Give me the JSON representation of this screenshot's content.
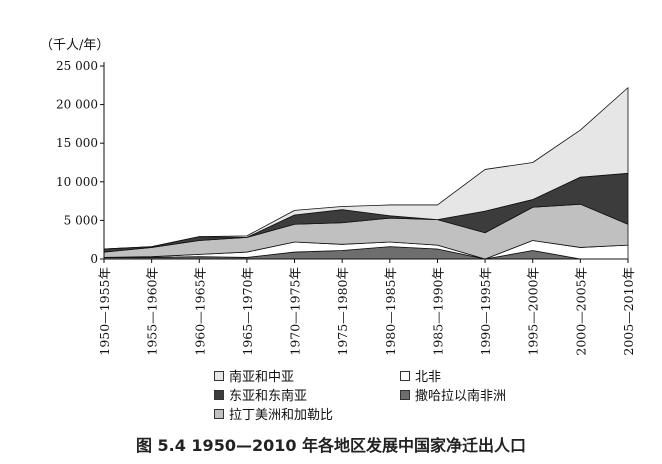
{
  "chart_data": {
    "type": "area",
    "stacked": true,
    "caption": "图 5.4   1950—2010 年各地区发展中国家净迁出人口",
    "ylabel": "（千人/年）",
    "ylim": [
      0,
      25000
    ],
    "yticks": [
      0,
      5000,
      10000,
      15000,
      20000,
      25000
    ],
    "ytick_labels": [
      "0",
      "5 000",
      "10 000",
      "15 000",
      "20 000",
      "25 000"
    ],
    "categories": [
      "1950—1955年",
      "1955—1960年",
      "1960—1965年",
      "1965—1970年",
      "1970—1975年",
      "1975—1980年",
      "1980—1985年",
      "1985—1990年",
      "1990—1995年",
      "1995—2000年",
      "2000—2005年",
      "2005—2010年"
    ],
    "legend_placement": "bottom",
    "grid": false,
    "series": [
      {
        "name": "撒哈拉以南非洲",
        "color": "#6e6e6e",
        "values": [
          200,
          200,
          300,
          200,
          900,
          1100,
          1600,
          1300,
          0,
          1100,
          0,
          0
        ]
      },
      {
        "name": "北非",
        "color": "#ffffff",
        "values": [
          0,
          100,
          300,
          700,
          1300,
          800,
          600,
          500,
          0,
          1300,
          1500,
          1800
        ]
      },
      {
        "name": "拉丁美洲和加勒比",
        "color": "#c0c0c0",
        "values": [
          700,
          1200,
          1800,
          1900,
          2300,
          2800,
          3100,
          3300,
          3400,
          4300,
          5600,
          2700
        ]
      },
      {
        "name": "东亚和东南亚",
        "color": "#3c3c3c",
        "values": [
          400,
          100,
          500,
          0,
          1200,
          1700,
          300,
          0,
          2800,
          1000,
          3500,
          6600
        ]
      },
      {
        "name": "南亚和中亚",
        "color": "#e6e6e6",
        "values": [
          0,
          0,
          0,
          200,
          600,
          400,
          1400,
          1900,
          5400,
          4800,
          6100,
          11100
        ]
      }
    ]
  },
  "legend_order": [
    {
      "name": "南亚和中亚",
      "color": "#e6e6e6"
    },
    {
      "name": "北非",
      "color": "#ffffff"
    },
    {
      "name": "东亚和东南亚",
      "color": "#3c3c3c"
    },
    {
      "name": "撒哈拉以南非洲",
      "color": "#6e6e6e"
    },
    {
      "name": "拉丁美洲和加勒比",
      "color": "#c0c0c0"
    }
  ]
}
